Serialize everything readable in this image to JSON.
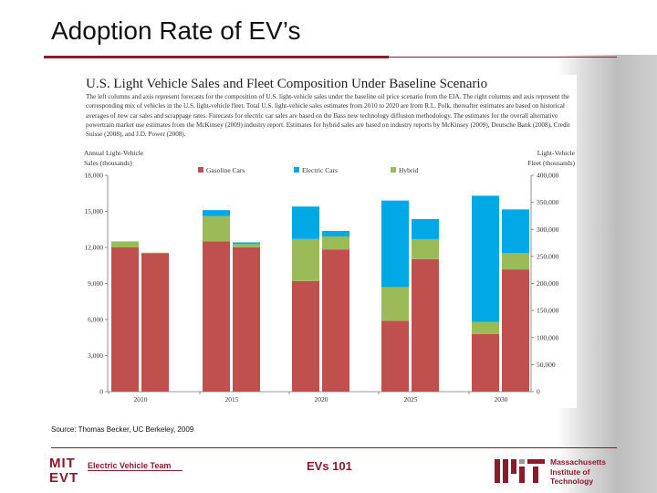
{
  "slide": {
    "title": "Adoption Rate of EV’s",
    "source": "Source: Thomas Becker, UC Berkeley, 2009",
    "footer_center": "EVs 101",
    "left_logo_text": "MIT EVT",
    "left_logo_label": "Electric Vehicle Team",
    "right_logo_text": [
      "Massachusetts",
      "Institute of",
      "Technology"
    ],
    "accent_color": "#8b1a2b"
  },
  "chart_data": {
    "type": "bar",
    "stacked": true,
    "title": "U.S. Light Vehicle Sales and Fleet Composition Under Baseline Scenario",
    "description": "The left columns and axis represent forecasts for the composition of U.S. light-vehicle sales under the baseline oil price scenario from the EIA. The right columns and axis represent the corresponding mix of vehicles in the U.S. light-vehicle fleet. Total U.S. light-vehicle sales estimates from 2010 to 2020 are from R.L. Polk, thereafter estimates are based on historical averages of new car sales and scrappage rates. Forecasts for electric car sales are based on the Bass new technology diffusion methodology. The estimates for the overall alternative powertrain market use estimates from the McKinsey (2009) industry report. Estimates for hybrid sales are based on industry reports by McKinsey (2009), Deutsche Bank (2008), Credit Suisse (2008), and J.D. Power (2008).",
    "ylabel_left": [
      "Annual Light-Vehicle",
      "Sales (thousands)"
    ],
    "ylabel_right": [
      "Light-Vehicle",
      "Fleet (thousands)"
    ],
    "ylim_left": [
      0,
      18000
    ],
    "ylim_right": [
      0,
      400000
    ],
    "yticks_left": [
      "0",
      "3,000",
      "6,000",
      "9,000",
      "12,000",
      "15,000",
      "18,000"
    ],
    "yticks_right": [
      "0",
      "50,000",
      "100,000",
      "150,000",
      "200,000",
      "250,000",
      "300,000",
      "350,000",
      "400,000"
    ],
    "categories": [
      "2010",
      "2015",
      "2020",
      "2025",
      "2030"
    ],
    "legend_position": "top",
    "series": [
      {
        "name": "Gasoline Cars",
        "color": "#c0504d",
        "sales": [
          12000,
          12500,
          9200,
          5900,
          4800
        ],
        "fleet": [
          256000,
          267000,
          263000,
          245000,
          226000
        ]
      },
      {
        "name": "Electric Cars",
        "color": "#00a9e6",
        "sales": [
          0,
          500,
          2700,
          7200,
          10500
        ],
        "fleet": [
          0,
          3000,
          10000,
          37000,
          81000
        ]
      },
      {
        "name": "Hybrid",
        "color": "#9bbb59",
        "sales": [
          500,
          2100,
          3500,
          2800,
          1000
        ],
        "fleet": [
          1000,
          6000,
          24000,
          37000,
          30000
        ]
      }
    ]
  }
}
